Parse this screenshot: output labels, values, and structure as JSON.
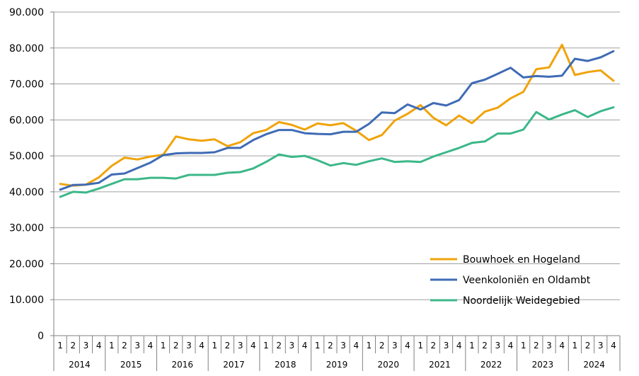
{
  "chart_data": {
    "type": "line",
    "title": "",
    "xlabel": "",
    "ylabel": "",
    "ylim": [
      0,
      90000
    ],
    "y_ticks": [
      "0",
      "10.000",
      "20.000",
      "30.000",
      "40.000",
      "50.000",
      "60.000",
      "70.000",
      "80.000",
      "90.000"
    ],
    "grid": "horizontal",
    "legend_position": "bottom-right",
    "years": [
      "2014",
      "2015",
      "2016",
      "2017",
      "2018",
      "2019",
      "2020",
      "2021",
      "2022",
      "2023",
      "2024"
    ],
    "quarters": [
      "1",
      "2",
      "3",
      "4"
    ],
    "series": [
      {
        "name": "Bouwhoek en Hogeland",
        "color": "#f0a30a",
        "values": [
          42200,
          41700,
          42000,
          44000,
          47200,
          49500,
          49000,
          49800,
          50300,
          55400,
          54600,
          54200,
          54600,
          52700,
          53800,
          56300,
          57200,
          59400,
          58600,
          57300,
          59000,
          58500,
          59100,
          57000,
          54400,
          55800,
          59800,
          61700,
          64100,
          60600,
          58500,
          61200,
          59100,
          62300,
          63400,
          66000,
          67800,
          74100,
          74600,
          80900,
          72500,
          73300,
          73800,
          70900
        ]
      },
      {
        "name": "Veenkoloniën en Oldambt",
        "color": "#3f6bb5",
        "values": [
          40600,
          41900,
          42000,
          42500,
          44800,
          45100,
          46600,
          48100,
          50200,
          50700,
          50800,
          50800,
          51000,
          52200,
          52200,
          54400,
          56000,
          57200,
          57200,
          56300,
          56100,
          56000,
          56700,
          56700,
          58900,
          62100,
          61900,
          64300,
          62900,
          64700,
          64000,
          65500,
          70200,
          71200,
          72800,
          74500,
          71800,
          72200,
          72000,
          72300,
          77000,
          76400,
          77400,
          79100
        ]
      },
      {
        "name": "Noordelijk Weidegebied",
        "color": "#3cb789",
        "values": [
          38600,
          40000,
          39800,
          40900,
          42200,
          43500,
          43500,
          43900,
          43900,
          43700,
          44700,
          44700,
          44700,
          45300,
          45500,
          46500,
          48300,
          50400,
          49700,
          50000,
          48800,
          47300,
          48000,
          47500,
          48500,
          49300,
          48300,
          48500,
          48300,
          49800,
          51000,
          52200,
          53600,
          54000,
          56200,
          56200,
          57300,
          62200,
          60100,
          61500,
          62700,
          60800,
          62400,
          63500
        ]
      }
    ]
  }
}
